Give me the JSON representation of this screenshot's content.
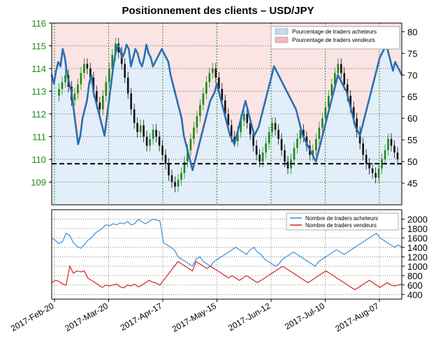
{
  "chart_data": [
    {
      "type": "line",
      "title": "Positionnement des clients – USD/JPY",
      "left_axis": {
        "ylim": [
          108,
          116
        ],
        "ticks": [
          109,
          110,
          111,
          112,
          113,
          114,
          115,
          116
        ],
        "color": "#1a8a1a"
      },
      "right_axis": {
        "ylim": [
          40,
          82
        ],
        "ticks": [
          45,
          50,
          55,
          60,
          65,
          70,
          75,
          80
        ]
      },
      "reference_line": {
        "y_right": 49.5,
        "style": "dashed"
      },
      "grid": true,
      "legend_position": "top-right",
      "legend": [
        {
          "label": "Pourcentage de traders acheteurs",
          "color": "#c5dcf0"
        },
        {
          "label": "Pourcentage de traders vendeurs",
          "color": "#f5b8b8"
        }
      ],
      "series": [
        {
          "name": "Pourcentage de traders acheteurs",
          "axis": "right",
          "color": "#2a6fb0",
          "values": [
            70,
            68,
            71,
            73,
            72,
            76,
            74,
            70,
            68,
            66,
            62,
            58,
            54,
            56,
            60,
            62,
            64,
            68,
            70,
            66,
            64,
            62,
            60,
            58,
            56,
            60,
            64,
            68,
            72,
            75,
            77,
            76,
            74,
            75,
            77,
            76,
            72,
            74,
            76,
            75,
            73,
            72,
            74,
            77,
            75,
            74,
            72,
            73,
            74,
            75,
            76,
            75,
            74,
            73,
            70,
            68,
            66,
            64,
            62,
            60,
            56,
            54,
            52,
            50,
            48,
            50,
            52,
            54,
            56,
            58,
            60,
            62,
            64,
            65,
            66,
            68,
            66,
            64,
            62,
            60,
            58,
            56,
            55,
            54,
            56,
            58,
            60,
            62,
            64,
            62,
            60,
            58,
            56,
            57,
            58,
            60,
            62,
            64,
            66,
            68,
            70,
            72,
            71,
            70,
            69,
            68,
            67,
            66,
            65,
            64,
            63,
            62,
            60,
            58,
            56,
            55,
            54,
            53,
            52,
            51,
            50,
            52,
            54,
            56,
            58,
            60,
            62,
            64,
            66,
            68,
            70,
            69,
            68,
            67,
            66,
            64,
            62,
            60,
            58,
            57,
            56,
            58,
            60,
            62,
            64,
            66,
            68,
            70,
            72,
            74,
            75,
            76,
            77,
            75,
            73,
            71,
            73,
            72,
            71,
            70
          ]
        }
      ],
      "candles": {
        "axis": "left",
        "up_color": "#1a8a1a",
        "down_color": "#111111",
        "closes": [
          112.8,
          113.1,
          113.4,
          113.7,
          113.2,
          112.6,
          112.9,
          113.3,
          113.8,
          114.2,
          114.0,
          113.6,
          113.0,
          112.5,
          112.2,
          112.8,
          113.4,
          114.0,
          114.6,
          115.1,
          114.7,
          114.2,
          113.6,
          112.9,
          112.2,
          111.6,
          111.2,
          111.5,
          111.0,
          110.6,
          110.9,
          111.3,
          111.0,
          110.6,
          110.2,
          109.8,
          109.3,
          109.0,
          108.8,
          109.1,
          109.4,
          109.9,
          110.4,
          110.9,
          111.4,
          111.9,
          112.4,
          112.9,
          113.4,
          113.8,
          114.0,
          113.6,
          113.1,
          112.6,
          112.0,
          111.5,
          111.0,
          110.8,
          111.2,
          111.7,
          112.0,
          111.6,
          111.1,
          110.6,
          110.2,
          109.9,
          110.3,
          110.7,
          111.2,
          111.6,
          111.3,
          110.9,
          110.4,
          109.9,
          109.6,
          110.0,
          110.5,
          110.9,
          111.3,
          111.0,
          110.6,
          110.2,
          110.4,
          110.9,
          111.4,
          111.8,
          112.3,
          112.8,
          113.3,
          113.8,
          114.2,
          113.8,
          113.3,
          112.8,
          112.3,
          111.8,
          111.2,
          110.7,
          110.2,
          109.8,
          109.6,
          109.4,
          109.2,
          109.6,
          110.0,
          110.4,
          110.9,
          110.6,
          110.3,
          110.0
        ]
      }
    },
    {
      "type": "line",
      "left_axis": {
        "ylim": [
          300,
          2200
        ]
      },
      "right_axis": {
        "ylim": [
          300,
          2200
        ],
        "ticks": [
          400,
          600,
          800,
          1000,
          1200,
          1400,
          1600,
          1800,
          2000
        ]
      },
      "grid": true,
      "legend_position": "top-right",
      "x_ticks": [
        "2017-Feb-20",
        "2017-Mar-20",
        "2017-Apr-17",
        "2017-May-15",
        "2017-Jun-12",
        "2017-Jul-10",
        "2017-Aug-07"
      ],
      "series": [
        {
          "name": "Nombre de traders acheteurs",
          "color": "#3a8fd8",
          "values": [
            1600,
            1550,
            1480,
            1520,
            1700,
            1650,
            1500,
            1420,
            1380,
            1450,
            1550,
            1600,
            1700,
            1750,
            1800,
            1880,
            1860,
            1900,
            1880,
            1920,
            1900,
            1950,
            1880,
            1900,
            2000,
            1940,
            1900,
            1950,
            2000,
            1980,
            1960,
            1500,
            1450,
            1400,
            1350,
            1200,
            1150,
            1100,
            1050,
            1000,
            1150,
            1200,
            1100,
            1050,
            1000,
            1100,
            1150,
            1200,
            1250,
            1300,
            1350,
            1400,
            1350,
            1300,
            1250,
            1350,
            1400,
            1300,
            1250,
            1150,
            1100,
            1050,
            1000,
            1050,
            1150,
            1200,
            1250,
            1300,
            1250,
            1200,
            1150,
            1100,
            1050,
            1000,
            1100,
            1150,
            1200,
            1250,
            1300,
            1350,
            1300,
            1250,
            1300,
            1350,
            1400,
            1450,
            1500,
            1550,
            1600,
            1650,
            1700,
            1600,
            1550,
            1500,
            1450,
            1400,
            1450,
            1400
          ]
        },
        {
          "name": "Nombre de traders vendeurs",
          "color": "#d82020",
          "values": [
            650,
            700,
            680,
            620,
            600,
            1000,
            850,
            900,
            880,
            900,
            750,
            700,
            650,
            600,
            550,
            600,
            580,
            600,
            620,
            560,
            540,
            600,
            580,
            620,
            560,
            600,
            650,
            700,
            660,
            640,
            600,
            700,
            800,
            900,
            1000,
            1100,
            1050,
            1000,
            950,
            900,
            1100,
            1050,
            1000,
            950,
            1000,
            950,
            900,
            850,
            800,
            750,
            800,
            750,
            700,
            750,
            800,
            750,
            700,
            650,
            700,
            750,
            800,
            850,
            900,
            950,
            1000,
            950,
            900,
            850,
            800,
            750,
            700,
            650,
            700,
            750,
            800,
            850,
            900,
            850,
            800,
            750,
            700,
            650,
            600,
            550,
            500,
            550,
            600,
            650,
            700,
            650,
            600,
            550,
            600,
            650,
            600,
            580,
            600,
            620
          ]
        }
      ],
      "legend": [
        {
          "label": "Nombre de traders acheteurs",
          "color": "#3a8fd8"
        },
        {
          "label": "Nombre de traders vendeurs",
          "color": "#d82020"
        }
      ]
    }
  ]
}
